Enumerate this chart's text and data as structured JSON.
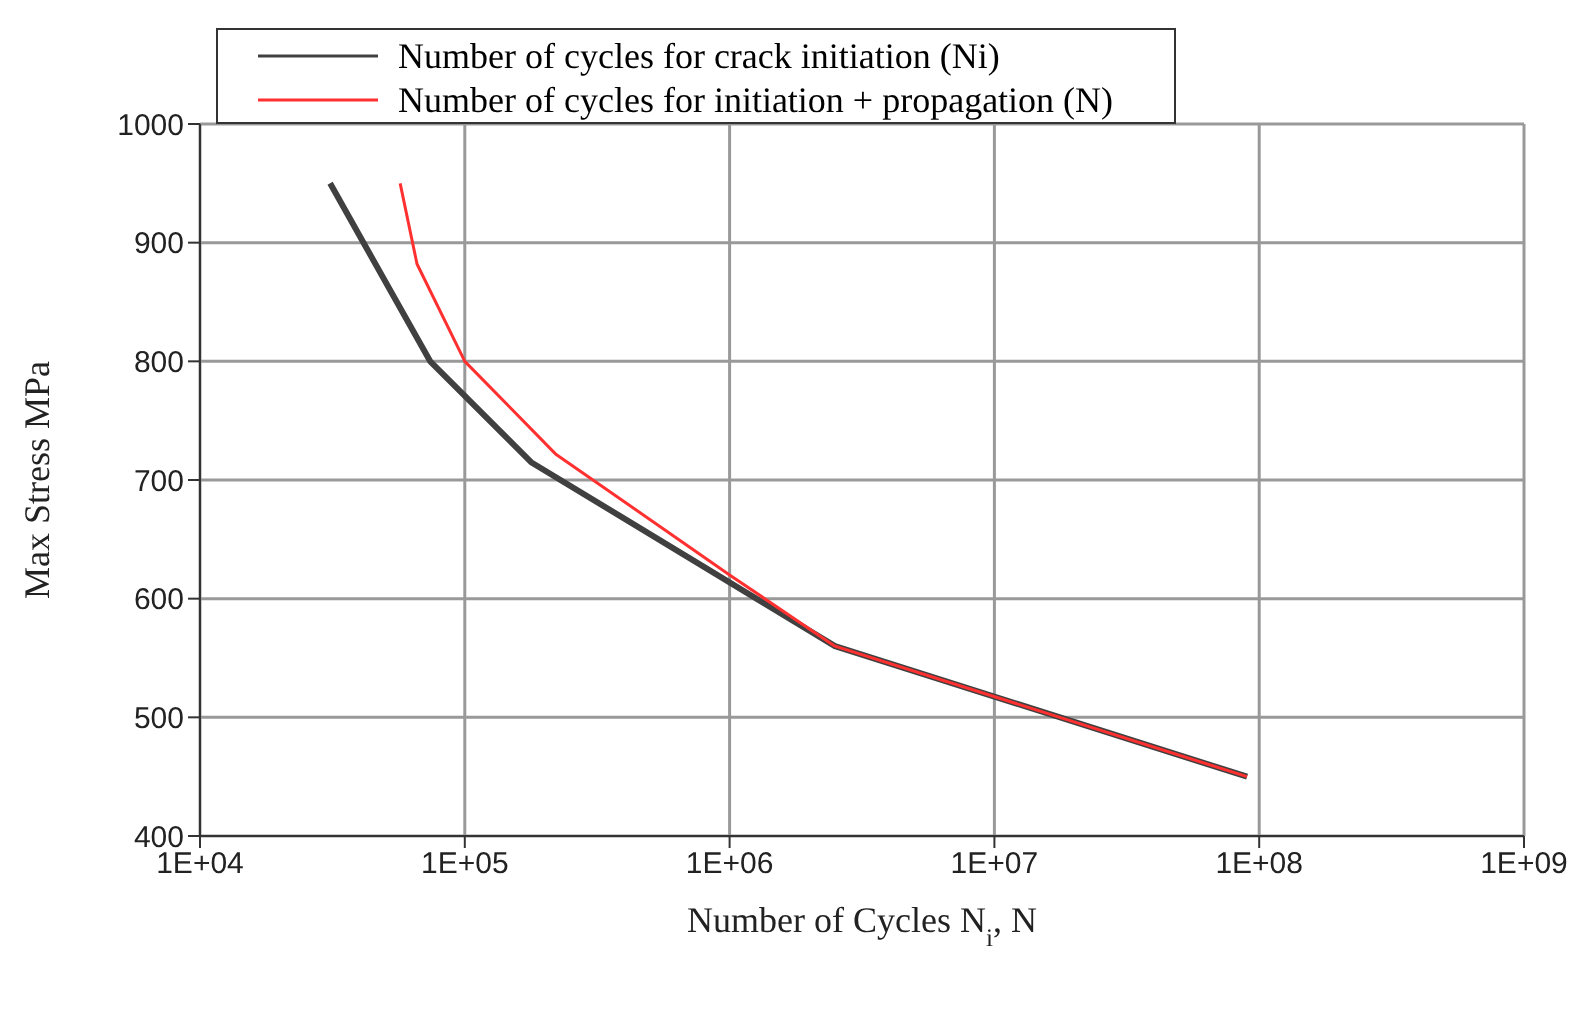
{
  "chart_data": {
    "type": "line",
    "xlabel": "Number of Cycles  N$_{i}$, N",
    "ylabel": "Max Stress  MPa",
    "log": "x",
    "grid": true,
    "legend": "top",
    "marker": "none",
    "line_style": "solid",
    "xlim": [
      10000,
      1000000000
    ],
    "xticks": [
      {
        "value": 10000,
        "label": "1E+04"
      },
      {
        "value": 100000,
        "label": "1E+05"
      },
      {
        "value": 1000000,
        "label": "1E+06"
      },
      {
        "value": 10000000,
        "label": "1E+07"
      },
      {
        "value": 100000000,
        "label": "1E+08"
      },
      {
        "value": 1000000000,
        "label": "1E+09"
      }
    ],
    "ylim": [
      400,
      1000
    ],
    "yticks": [
      400,
      500,
      600,
      700,
      800,
      900,
      1000
    ],
    "series": [
      {
        "name": "Number of cycles for crack initiation (Ni)",
        "color": "#404040",
        "x": [
          31000,
          74000,
          178000,
          2500000,
          90000000
        ],
        "values": [
          950,
          800,
          715,
          560,
          450
        ]
      },
      {
        "name": "Number of cycles for initiation + propagation (N)",
        "color": "#ff3030",
        "x": [
          57000,
          66000,
          100000,
          220000,
          1000000,
          2500000,
          90000000
        ],
        "values": [
          950,
          882,
          800,
          722,
          620,
          560,
          450
        ]
      }
    ]
  }
}
